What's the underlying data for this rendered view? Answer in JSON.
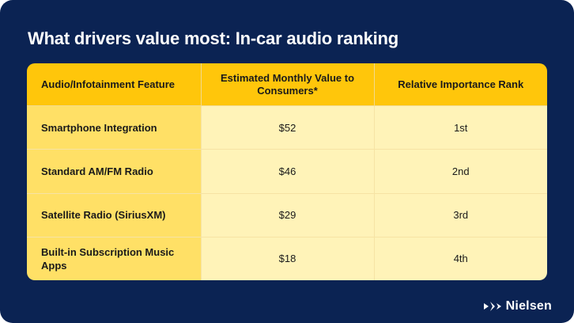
{
  "title": "What drivers value most: In-car audio ranking",
  "table": {
    "headers": [
      "Audio/Infotainment Feature",
      "Estimated Monthly Value to Consumers*",
      "Relative Importance Rank"
    ],
    "rows": [
      {
        "feature": "Smartphone Integration",
        "value": "$52",
        "rank": "1st"
      },
      {
        "feature": "Standard AM/FM Radio",
        "value": "$46",
        "rank": "2nd"
      },
      {
        "feature": "Satellite Radio (SiriusXM)",
        "value": "$29",
        "rank": "3rd"
      },
      {
        "feature": "Built-in Subscription Music Apps",
        "value": "$18",
        "rank": "4th"
      }
    ]
  },
  "brand": {
    "name": "Nielsen",
    "icon": "nielsen-logo-icon"
  },
  "colors": {
    "background": "#0b2353",
    "header": "#ffc60b",
    "feature_cell": "#ffe066",
    "value_cell": "#fff3b8",
    "title_text": "#ffffff"
  }
}
